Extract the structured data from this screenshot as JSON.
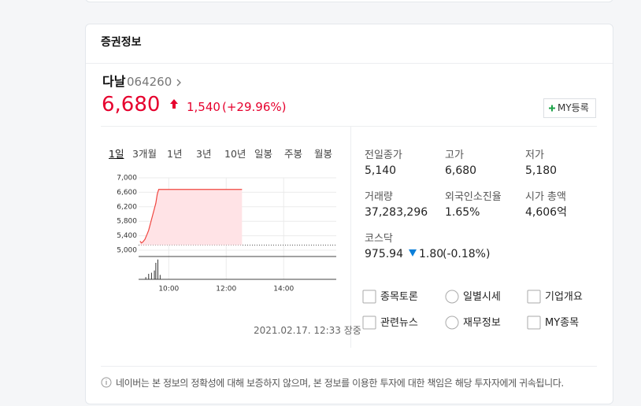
{
  "header": {
    "title": "증권정보"
  },
  "stock": {
    "name": "다날",
    "code": "064260",
    "price": "6,680",
    "change": "1,540",
    "change_rate": "(+29.96%)",
    "my_button": "MY등록"
  },
  "tabs": [
    "1일",
    "3개월",
    "1년",
    "3년",
    "10년",
    "일봉",
    "주봉",
    "월봉"
  ],
  "chart": {
    "type": "line",
    "color": "#f0453f",
    "x": [
      9,
      9.05,
      9.1,
      9.17,
      9.25,
      9.3,
      9.4,
      9.5,
      9.55,
      9.6,
      9.65,
      12.55
    ],
    "values": [
      5250,
      5200,
      5230,
      5300,
      5450,
      5550,
      5850,
      6150,
      6300,
      6550,
      6680,
      6680
    ],
    "baseline": 5140,
    "xlim": [
      8.95,
      15.83
    ],
    "ylim": [
      5000,
      7000
    ],
    "yticks": [
      {
        "value": 7000,
        "label": "7,000"
      },
      {
        "value": 6600,
        "label": "6,600"
      },
      {
        "value": 6200,
        "label": "6,200"
      },
      {
        "value": 5800,
        "label": "5,800"
      },
      {
        "value": 5400,
        "label": "5,400"
      },
      {
        "value": 5000,
        "label": "5,000"
      }
    ],
    "xticks": [
      {
        "value": 10,
        "label": "10:00"
      },
      {
        "value": 12,
        "label": "12:00"
      },
      {
        "value": 14,
        "label": "14:00"
      }
    ],
    "volume": {
      "x": [
        9.2,
        9.3,
        9.4,
        9.5,
        9.55,
        9.62,
        9.7
      ],
      "values": [
        10,
        25,
        30,
        40,
        75,
        90,
        20
      ],
      "ylim": [
        0,
        100
      ]
    }
  },
  "timestamp": "2021.02.17. 12:33 장중",
  "stats": [
    {
      "label": "전일종가",
      "value": "5,140"
    },
    {
      "label": "고가",
      "value": "6,680"
    },
    {
      "label": "저가",
      "value": "5,180"
    },
    {
      "label": "거래량",
      "value": "37,283,296"
    },
    {
      "label": "외국인소진율",
      "value": "1.65%"
    },
    {
      "label": "시가 총액",
      "value": "4,606억"
    }
  ],
  "index": {
    "name": "코스닥",
    "value": "975.94",
    "change": "1.80",
    "change_rate": "(-0.18%)"
  },
  "links": [
    "종목토론",
    "일별시세",
    "기업개요",
    "관련뉴스",
    "재무정보",
    "MY종목"
  ],
  "notice": "네이버는 본 정보의 정확성에 대해 보증하지 않으며, 본 정보를 이용한 투자에 대한 책임은 해당 투자자에게 귀속됩니다."
}
